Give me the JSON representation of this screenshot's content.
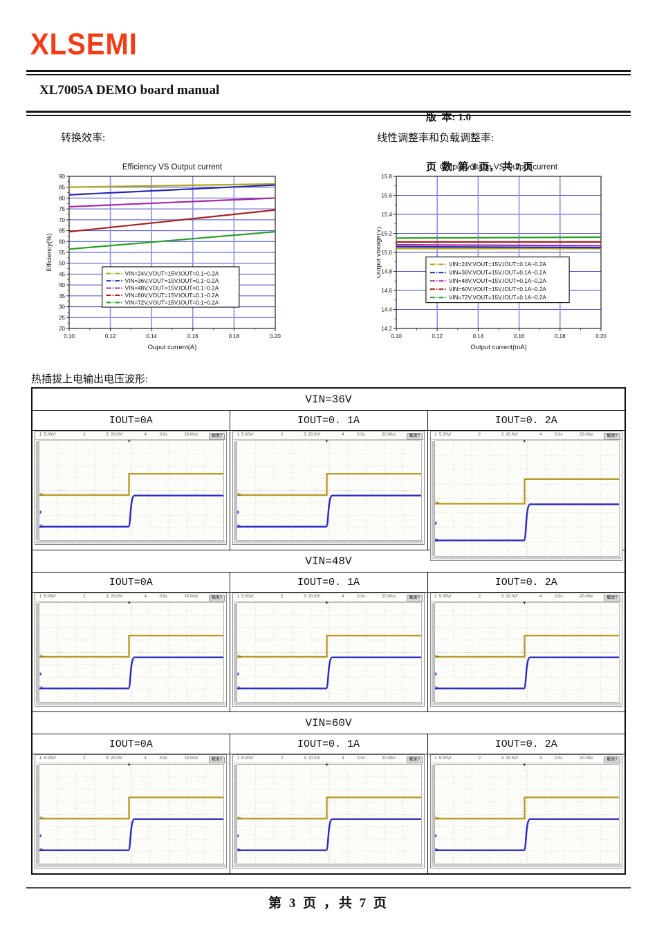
{
  "colors": {
    "logo": "#f23c16",
    "grid_horizontal": "#4a4ac8",
    "grid_vertical": "#8f8fe8",
    "scope_ch1": "#b89a28",
    "scope_ch2": "#2a2ac0"
  },
  "page": {
    "logo": "XLSEMI",
    "title": "XL7005A DEMO board manual",
    "version_label": "版  本: 1.0",
    "pages_label": "页  数: 第 3 页， 共 7 页",
    "section_left": "转换效率:",
    "section_right": "线性调整率和负载调整率:",
    "waveform_heading": "热插拔上电输出电压波形:",
    "footer": "第 3 页 ，共 7 页"
  },
  "chart_data": [
    {
      "name": "efficiency-chart",
      "type": "line",
      "title": "Efficiency VS Output current",
      "xlabel": "Ouput current(A)",
      "ylabel": "Efficiency(%)",
      "xlim": [
        0.1,
        0.2
      ],
      "ylim": [
        20,
        90
      ],
      "xticks": [
        0.1,
        0.12,
        0.14,
        0.16,
        0.18,
        0.2
      ],
      "ystep": 5,
      "y_decimals": 0,
      "grid": true,
      "legend_position": "inside-bottom-center",
      "x": [
        0.1,
        0.2
      ],
      "series": [
        {
          "name": "VIN=24V,VOUT=15V,IOUT=0.1~0.2A",
          "color": "#b0a818",
          "values": [
            85,
            86.5
          ]
        },
        {
          "name": "VIN=36V,VOUT=15V,IOUT=0.1~0.2A",
          "color": "#2828b0",
          "values": [
            81.5,
            86
          ]
        },
        {
          "name": "VIN=48V,VOUT=15V,IOUT=0.1~0.2A",
          "color": "#a828a8",
          "values": [
            76,
            80
          ]
        },
        {
          "name": "VIN=60V,VOUT=15V,IOUT=0.1~0.2A",
          "color": "#a82020",
          "values": [
            64.5,
            74.5
          ]
        },
        {
          "name": "VIN=72V,VOUT=15V,IOUT=0.1~0.2A",
          "color": "#28a028",
          "values": [
            56.5,
            64.5
          ]
        }
      ]
    },
    {
      "name": "output-voltage-chart",
      "type": "line",
      "title": "Output voltage VS Output current",
      "xlabel": "Output current(mA)",
      "ylabel": "Output voltage(V)",
      "xlim": [
        0.1,
        0.2
      ],
      "ylim": [
        14.2,
        15.8
      ],
      "xticks": [
        0.1,
        0.12,
        0.14,
        0.16,
        0.18,
        0.2
      ],
      "ystep": 0.2,
      "y_decimals": 1,
      "grid": true,
      "legend_position": "inside-bottom-center",
      "x": [
        0.1,
        0.2
      ],
      "series": [
        {
          "name": "VIN=24V,VOUT=15V,IOUT=0.1A~0.2A",
          "color": "#b0a818",
          "values": [
            15.04,
            15.04
          ]
        },
        {
          "name": "VIN=36V,VOUT=15V,IOUT=0.1A~0.2A",
          "color": "#2828b0",
          "values": [
            15.06,
            15.05
          ]
        },
        {
          "name": "VIN=48V,VOUT=15V,IOUT=0.1A~0.2A",
          "color": "#a828a8",
          "values": [
            15.08,
            15.07
          ]
        },
        {
          "name": "VIN=60V,VOUT=15V,IOUT=0.1A~0.2A",
          "color": "#a82020",
          "values": [
            15.11,
            15.11
          ]
        },
        {
          "name": "VIN=72V,VOUT=15V,IOUT=0.1A~0.2A",
          "color": "#28a028",
          "values": [
            15.15,
            15.16
          ]
        }
      ]
    }
  ],
  "scope_table": {
    "groups": [
      {
        "vin": "VIN=36V",
        "columns": [
          "IOUT=0A",
          "IOUT=0. 1A",
          "IOUT=0. 2A"
        ]
      },
      {
        "vin": "VIN=48V",
        "columns": [
          "IOUT=0A",
          "IOUT=0. 1A",
          "IOUT=0. 2A"
        ]
      },
      {
        "vin": "VIN=60V",
        "columns": [
          "IOUT=0A",
          "IOUT=0. 1A",
          "IOUT=0. 2A"
        ]
      }
    ],
    "scope": {
      "header_items": [
        "1  5.00V/",
        "2",
        "3  20.0V/",
        "4",
        "0.0s",
        "20.00s/"
      ],
      "trigger_button": "触发?",
      "ch1_label": "1",
      "ch2_label": "2",
      "waveform": {
        "step_x": 0.487,
        "ch1_pre": 0.545,
        "ch1_post": 0.33,
        "ch2_pre": 0.865,
        "ch2_post": 0.55
      }
    }
  }
}
